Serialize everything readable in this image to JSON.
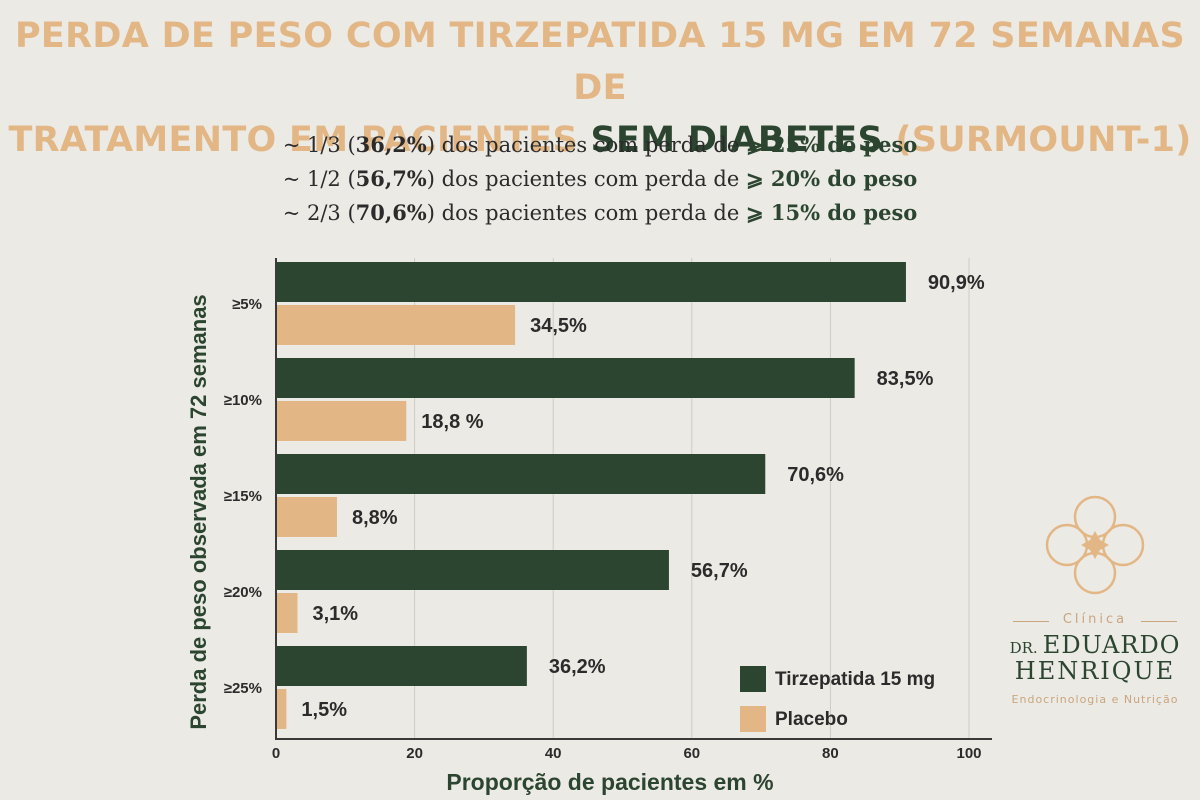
{
  "title": {
    "part1": "PERDA DE PESO  COM TIRZEPATIDA 15 MG EM 72 SEMANAS DE",
    "part2": "TRATAMENTO EM PACIENTES ",
    "highlight": "SEM DIABETES",
    "part3": "  (SURMOUNT-1)"
  },
  "subtitle": [
    {
      "pre": "~ 1/3 (",
      "pct": "36,2%",
      "mid": ") dos pacientes com perda de ",
      "sym": "⩾ ",
      "tail": "25% do peso"
    },
    {
      "pre": "~ 1/2 (",
      "pct": "56,7%",
      "mid": ") dos pacientes com  perda de ",
      "sym": "⩾ ",
      "tail": "20% do peso"
    },
    {
      "pre": "~ 2/3 (",
      "pct": "70,6%",
      "mid": ") dos pacientes com perda de ",
      "sym": "⩾ ",
      "tail": "15% do peso"
    }
  ],
  "logo": {
    "clinic": "Clínica",
    "dr": "DR.",
    "name1": "EDUARDO",
    "name2": "HENRIQUE",
    "specialty": "Endocrinologia e Nutrição"
  },
  "chart_data": {
    "type": "bar",
    "orientation": "horizontal",
    "categories": [
      "≥5%",
      "≥10%",
      "≥15%",
      "≥20%",
      "≥25%"
    ],
    "series": [
      {
        "name": "Tirzepatida 15 mg",
        "color": "#2B4530",
        "values": [
          90.9,
          83.5,
          70.6,
          56.7,
          36.2
        ],
        "labels": [
          "90,9%",
          "83,5%",
          "70,6%",
          "56,7%",
          "36,2%"
        ]
      },
      {
        "name": "Placebo",
        "color": "#E3B785",
        "values": [
          34.5,
          18.8,
          8.8,
          3.1,
          1.5
        ],
        "labels": [
          "34,5%",
          "18,8 %",
          "8,8%",
          "3,1%",
          "1,5%"
        ]
      }
    ],
    "xlabel": "Proporção de pacientes em %",
    "ylabel": "Perda de peso observada em 72 semanas",
    "xlim": [
      0,
      100
    ],
    "xticks": [
      0,
      20,
      40,
      60,
      80,
      100
    ],
    "grid": true,
    "legend_position": "bottom-right"
  }
}
